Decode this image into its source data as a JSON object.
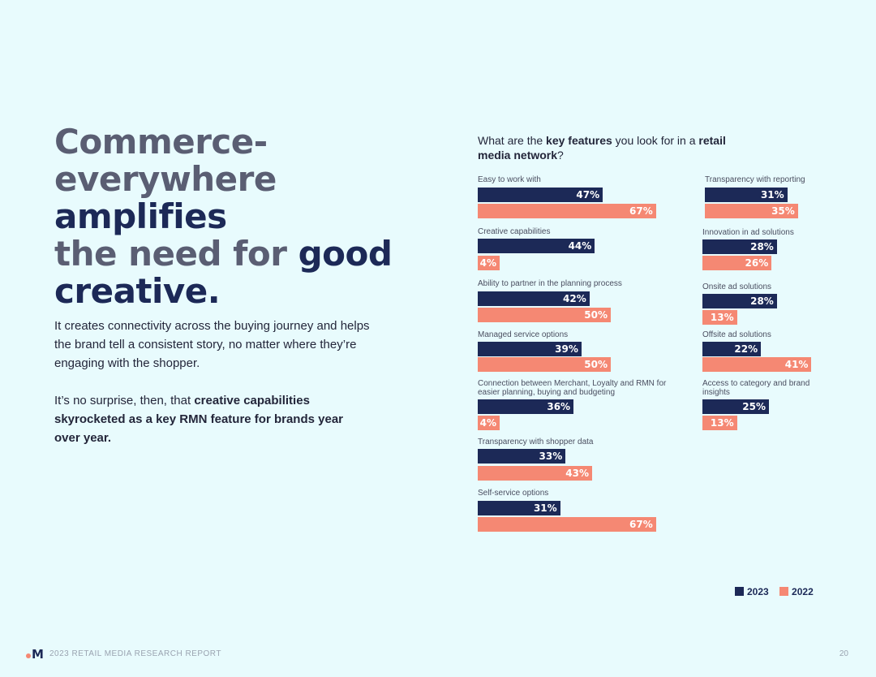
{
  "headline": {
    "line1": "Commerce-",
    "line2a": "everywhere ",
    "line2b": "amplifies",
    "line3a": "the need for ",
    "line3b": "good",
    "line4": "creative."
  },
  "body": {
    "p1": "It creates connectivity across the buying journey and helps the brand tell a consistent story, no matter where they’re engaging with the shopper.",
    "p2_plain": "It’s no surprise, then, that ",
    "p2_bold": "creative capabilities skyrocketed as a key RMN feature for brands year over year."
  },
  "chart_title": {
    "part1": "What are the ",
    "bold1": "key features",
    "part2": " you look for in a ",
    "bold2": "retail media network",
    "part3": "?"
  },
  "chart_data": {
    "type": "bar",
    "orientation": "horizontal",
    "categories": [
      "Easy to work with",
      "Creative capabilities",
      "Ability to partner in the planning process",
      "Managed service options",
      "Connection between Merchant, Loyalty and RMN for easier planning, buying and budgeting",
      "Transparency with shopper data",
      "Self-service options",
      "Transparency with reporting",
      "Innovation in ad solutions",
      "Onsite ad solutions",
      "Offsite ad solutions",
      "Access to category and brand insights"
    ],
    "series": [
      {
        "name": "2023",
        "values": [
          47,
          44,
          42,
          39,
          36,
          33,
          31,
          31,
          28,
          28,
          22,
          25
        ]
      },
      {
        "name": "2022",
        "values": [
          67,
          4,
          50,
          50,
          4,
          43,
          67,
          35,
          26,
          13,
          41,
          13
        ]
      }
    ],
    "unit": "%",
    "legend_position": "bottom-right",
    "colors": {
      "2023": "#1c2957",
      "2022": "#f58873"
    }
  },
  "legend": {
    "a": "2023",
    "b": "2022"
  },
  "footer": {
    "logo": "M",
    "report": "2023 RETAIL MEDIA RESEARCH REPORT",
    "page": "20"
  }
}
